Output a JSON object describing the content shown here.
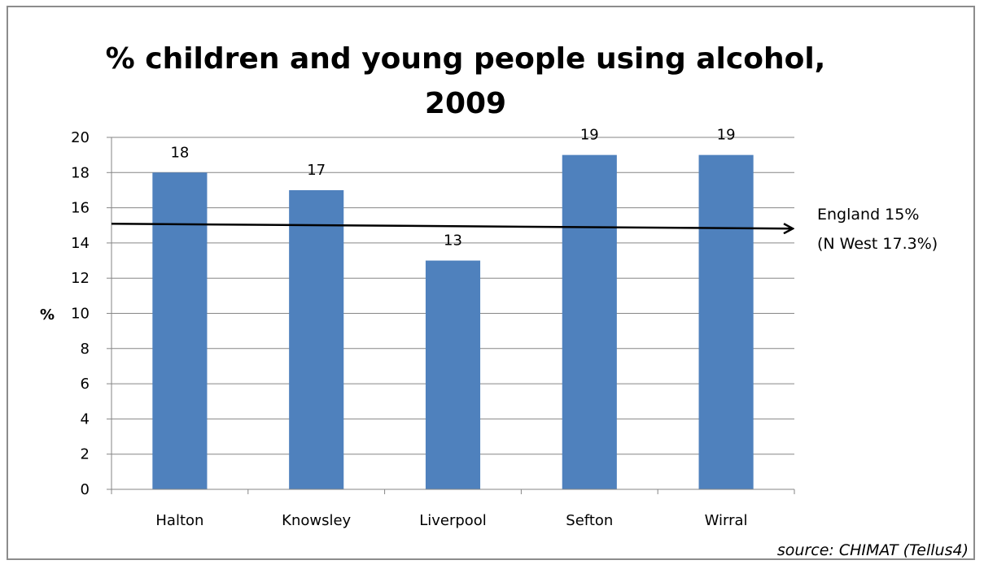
{
  "chart_data": {
    "type": "bar",
    "title_lines": [
      "% children and young people using alcohol,",
      "2009"
    ],
    "xlabel": "",
    "ylabel": "%",
    "categories": [
      "Halton",
      "Knowsley",
      "Liverpool",
      "Sefton",
      "Wirral"
    ],
    "values": [
      18,
      17,
      13,
      19,
      19
    ],
    "data_labels": [
      "18",
      "17",
      "13",
      "19",
      "19"
    ],
    "ylim": [
      0,
      20
    ],
    "yticks": [
      "0",
      "2",
      "4",
      "6",
      "8",
      "10",
      "12",
      "14",
      "16",
      "18",
      "20"
    ],
    "grid": true,
    "legend": "none",
    "bar_color": "#4f81bd",
    "grid_color": "#868686",
    "reference_line": {
      "value": 15,
      "color": "#000000",
      "label_lines": [
        "England 15%",
        "(N West 17.3%)"
      ]
    },
    "source": "source: CHIMAT (Tellus4)"
  }
}
